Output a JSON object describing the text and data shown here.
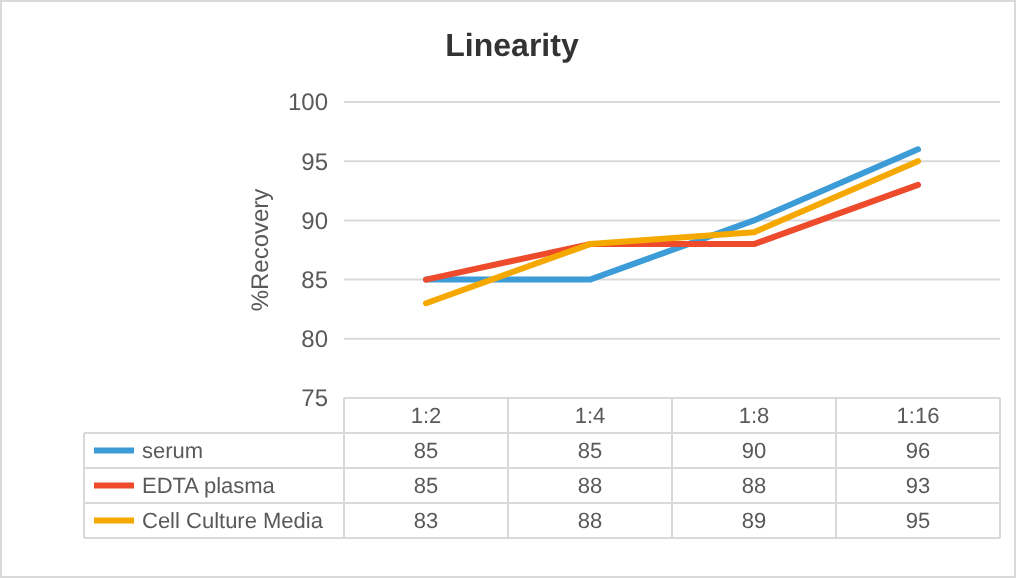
{
  "chart_data": {
    "type": "line",
    "title": "Linearity",
    "ylabel": "%Recovery",
    "categories": [
      "1:2",
      "1:4",
      "1:8",
      "1:16"
    ],
    "series": [
      {
        "name": "serum",
        "color": "#3c9cd8",
        "values": [
          85,
          85,
          90,
          96
        ]
      },
      {
        "name": "EDTA plasma",
        "color": "#ee4a2c",
        "values": [
          85,
          88,
          88,
          93
        ]
      },
      {
        "name": "Cell Culture Media",
        "color": "#f5a800",
        "values": [
          83,
          88,
          89,
          95
        ]
      }
    ],
    "ylim": [
      75,
      100
    ],
    "yticks": [
      75,
      80,
      85,
      90,
      95,
      100
    ],
    "grid": "y",
    "legend": "bottom",
    "data_labels": true,
    "line_style": "solid",
    "marker": "none"
  }
}
